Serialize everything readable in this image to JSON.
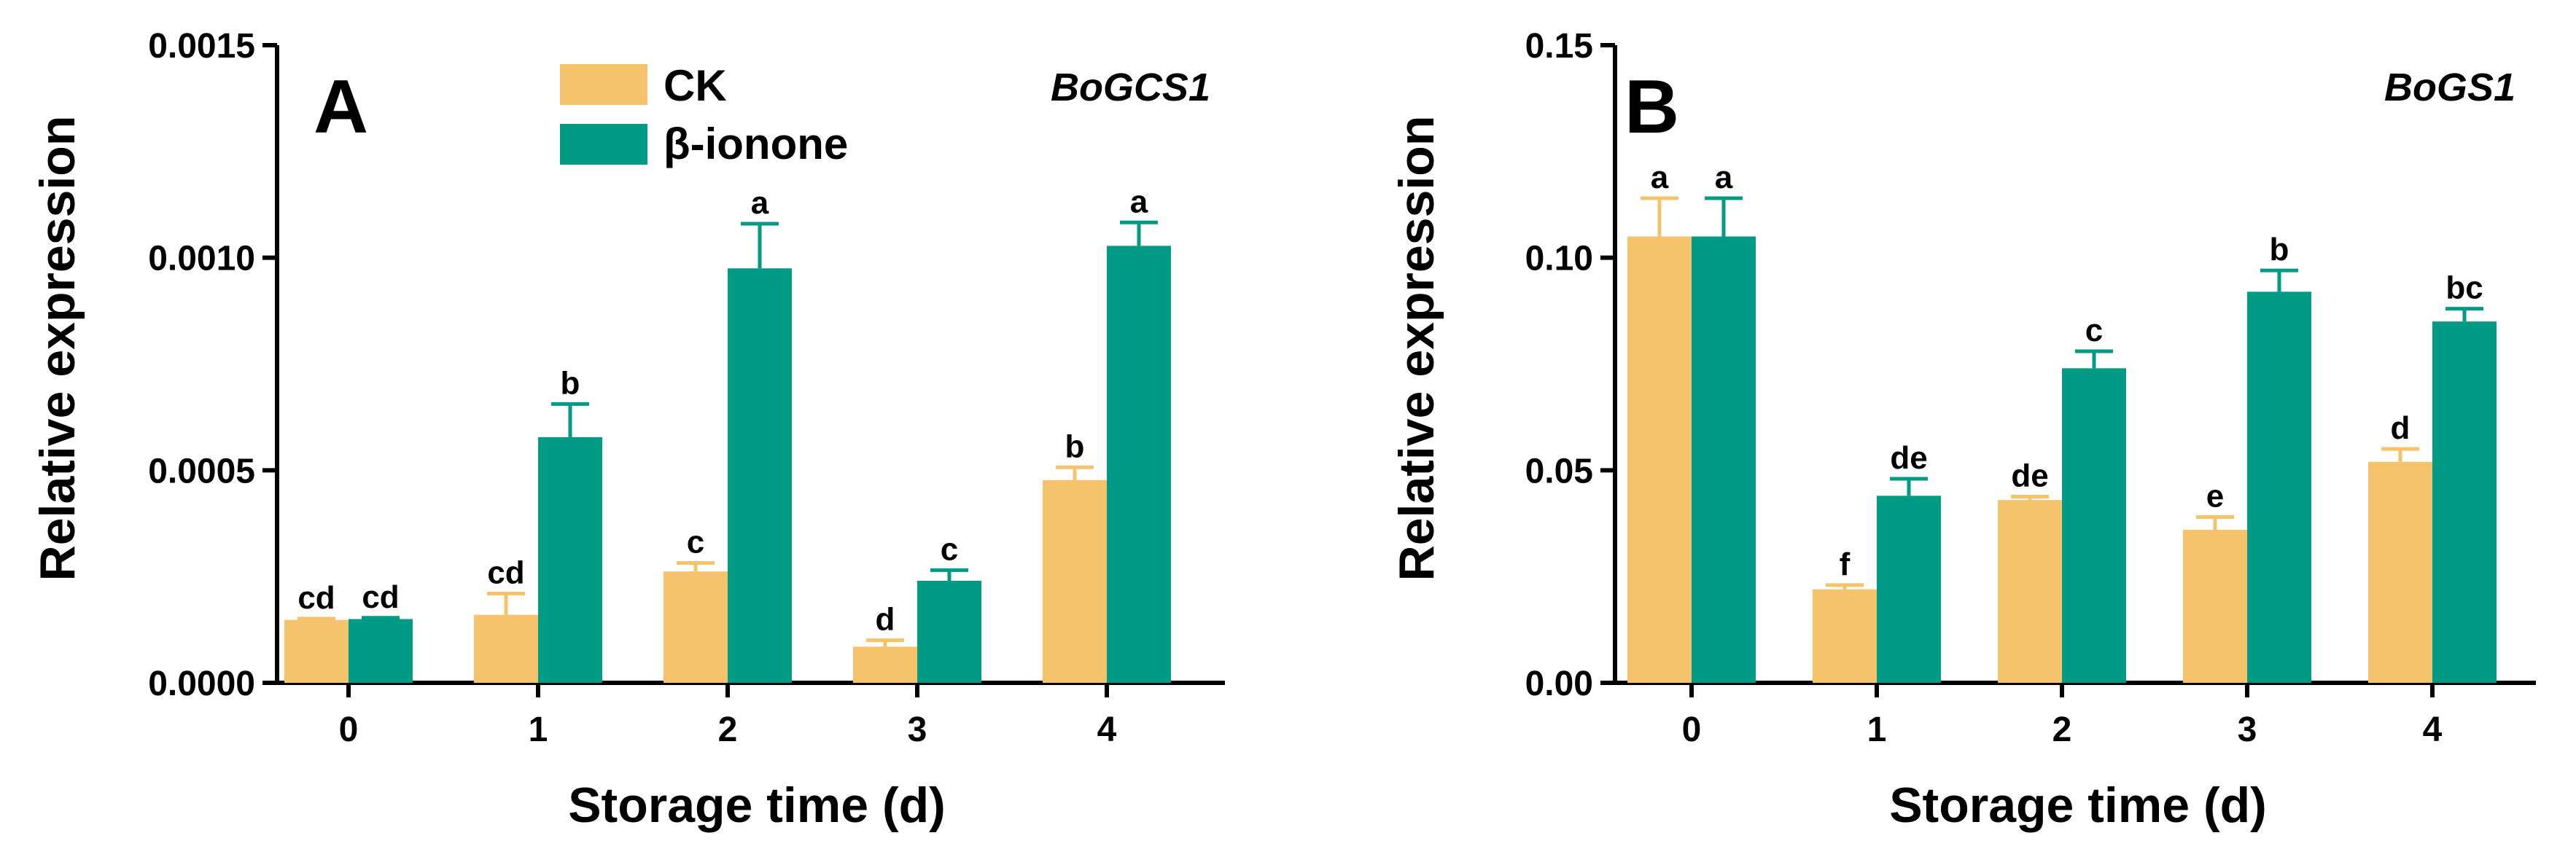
{
  "colors": {
    "ck": "#F5C36C",
    "ionone": "#019A84",
    "axis": "#000000"
  },
  "legend": [
    {
      "key": "ck",
      "label": "CK"
    },
    {
      "key": "ionone",
      "label": "β-ionone"
    }
  ],
  "chart_data": [
    {
      "type": "bar",
      "panel_label": "A",
      "gene": "BoGCS1",
      "xlabel": "Storage time (d)",
      "ylabel": "Relative expression",
      "ylim": [
        0,
        0.0015
      ],
      "yticks": [
        "0.0000",
        "0.0005",
        "0.0010",
        "0.0015"
      ],
      "ytick_values": [
        0,
        0.0005,
        0.001,
        0.0015
      ],
      "categories": [
        "0",
        "1",
        "2",
        "3",
        "4"
      ],
      "series": [
        {
          "name": "CK",
          "key": "ck",
          "values": [
            0.000148,
            0.00016,
            0.000262,
            8.5e-05,
            0.000477
          ],
          "errors": [
            3e-06,
            5e-05,
            2e-05,
            1.5e-05,
            3e-05
          ],
          "letters": [
            "cd",
            "cd",
            "c",
            "d",
            "b"
          ]
        },
        {
          "name": "β-ionone",
          "key": "ionone",
          "values": [
            0.00015,
            0.000578,
            0.000975,
            0.00024,
            0.001028
          ],
          "errors": [
            3e-06,
            7.8e-05,
            0.000105,
            2.5e-05,
            5.5e-05
          ],
          "letters": [
            "cd",
            "b",
            "a",
            "c",
            "a"
          ]
        }
      ],
      "legend_position": "top-center",
      "grid": false
    },
    {
      "type": "bar",
      "panel_label": "B",
      "gene": "BoGS1",
      "xlabel": "Storage time (d)",
      "ylabel": "Relative expression",
      "ylim": [
        0,
        0.15
      ],
      "yticks": [
        "0.00",
        "0.05",
        "0.10",
        "0.15"
      ],
      "ytick_values": [
        0,
        0.05,
        0.1,
        0.15
      ],
      "categories": [
        "0",
        "1",
        "2",
        "3",
        "4"
      ],
      "series": [
        {
          "name": "CK",
          "key": "ck",
          "values": [
            0.105,
            0.022,
            0.043,
            0.036,
            0.052
          ],
          "errors": [
            0.009,
            0.001,
            0.0008,
            0.003,
            0.003
          ],
          "letters": [
            "a",
            "f",
            "de",
            "e",
            "d"
          ]
        },
        {
          "name": "β-ionone",
          "key": "ionone",
          "values": [
            0.105,
            0.044,
            0.074,
            0.092,
            0.085
          ],
          "errors": [
            0.009,
            0.004,
            0.004,
            0.005,
            0.003
          ],
          "letters": [
            "a",
            "de",
            "c",
            "b",
            "bc"
          ]
        }
      ],
      "grid": false
    }
  ]
}
